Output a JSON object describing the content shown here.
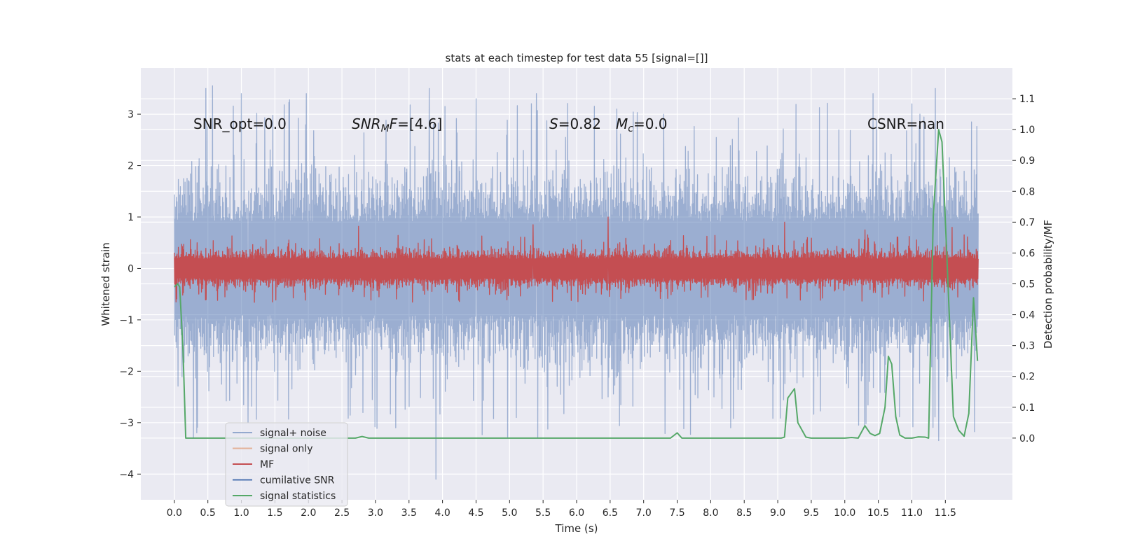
{
  "chart_data": {
    "type": "line",
    "title": "stats at each timestep for test data 55 [signal=[]]",
    "xlabel": "Time (s)",
    "ylabel_left": "Whitened strain",
    "ylabel_right": "Detection probability/MF",
    "xlim": [
      -0.5,
      12.5
    ],
    "ylim_left": [
      -4.5,
      3.9
    ],
    "ylim_right": [
      -0.2,
      1.2
    ],
    "x_ticks": [
      0.0,
      0.5,
      1.0,
      1.5,
      2.0,
      2.5,
      3.0,
      3.5,
      4.0,
      4.5,
      5.0,
      5.5,
      6.0,
      6.5,
      7.0,
      7.5,
      8.0,
      8.5,
      9.0,
      9.5,
      10.0,
      10.5,
      11.0,
      11.5
    ],
    "x_tick_labels": [
      "0.0",
      "0.5",
      "1.0",
      "1.5",
      "2.0",
      "2.5",
      "3.0",
      "3.5",
      "4.0",
      "4.5",
      "5.0",
      "5.5",
      "6.0",
      "6.5",
      "7.0",
      "7.5",
      "8.0",
      "8.5",
      "9.0",
      "9.5",
      "10.0",
      "10.5",
      "11.0",
      "11.5"
    ],
    "y_left_ticks": [
      3,
      2,
      1,
      0,
      -1,
      -2,
      -3,
      -4
    ],
    "y_left_tick_labels": [
      "3",
      "2",
      "1",
      "0",
      "−1",
      "−2",
      "−3",
      "−4"
    ],
    "y_right_ticks": [
      1.1,
      1.0,
      0.9,
      0.8,
      0.7,
      0.6,
      0.5,
      0.4,
      0.3,
      0.2,
      0.1,
      0.0
    ],
    "y_right_tick_labels": [
      "1.1",
      "1.0",
      "0.9",
      "0.8",
      "0.7",
      "0.6",
      "0.5",
      "0.4",
      "0.3",
      "0.2",
      "0.1",
      "0.0"
    ],
    "grid": true,
    "legend_position": "lower-left",
    "annotations": {
      "snr_opt": "SNR_opt=0.0",
      "snr_mf_italic": "SNR",
      "snr_mf_sub": "M",
      "snr_mf_italic2": "F",
      "snr_mf_value": "=[4.6]",
      "s_italic": "S",
      "s_value": "=0.82",
      "mc_italic": "M",
      "mc_sub": "c",
      "mc_value": "=0.0",
      "csnr": "CSNR=nan"
    },
    "series": [
      {
        "name": "signal+ noise",
        "color": "#4c72b0",
        "style": "noise",
        "description_axis": "left",
        "x_range": [
          0.0,
          11.99
        ],
        "band": [
          -1.5,
          1.5
        ],
        "peaks": [
          {
            "x": 0.47,
            "y": 3.5
          },
          {
            "x": 0.57,
            "y": 3.55
          },
          {
            "x": 1.0,
            "y": 3.4
          },
          {
            "x": 1.97,
            "y": 3.4
          },
          {
            "x": 3.8,
            "y": 3.5
          },
          {
            "x": 4.5,
            "y": 3.3
          },
          {
            "x": 5.4,
            "y": 3.4
          },
          {
            "x": 6.6,
            "y": 3.1
          },
          {
            "x": 7.3,
            "y": 3.0
          },
          {
            "x": 10.42,
            "y": 3.4
          },
          {
            "x": 11.0,
            "y": 3.2
          },
          {
            "x": 11.35,
            "y": 3.5
          },
          {
            "x": 3.9,
            "y": -4.1
          },
          {
            "x": 1.1,
            "y": -3.0
          },
          {
            "x": 8.3,
            "y": -3.1
          },
          {
            "x": 11.4,
            "y": -3.35
          },
          {
            "x": 3.3,
            "y": -3.1
          },
          {
            "x": 5.1,
            "y": -2.9
          }
        ]
      },
      {
        "name": "signal only",
        "color": "#dd8452",
        "style": "flat",
        "description_axis": "left",
        "x": [
          0.0,
          11.99
        ],
        "y": [
          0.0,
          0.0
        ]
      },
      {
        "name": "MF",
        "color": "#c44e52",
        "style": "noise",
        "description_axis": "left",
        "x_range": [
          0.0,
          11.99
        ],
        "band": [
          -0.3,
          0.3
        ],
        "peaks": [
          {
            "x": 6.47,
            "y": 1.0
          },
          {
            "x": 5.35,
            "y": 0.85
          },
          {
            "x": 9.1,
            "y": 0.9
          },
          {
            "x": 11.6,
            "y": 0.8
          },
          {
            "x": 2.75,
            "y": 0.82
          },
          {
            "x": 10.3,
            "y": 0.75
          }
        ]
      },
      {
        "name": "cumilative SNR",
        "color": "#4c72b0",
        "style": "hidden",
        "description_axis": "right",
        "x": [],
        "y": []
      },
      {
        "name": "signal statistics",
        "color": "#55a868",
        "style": "line",
        "description_axis": "right",
        "x": [
          0.0,
          0.05,
          0.08,
          0.13,
          0.17,
          0.3,
          2.7,
          2.8,
          2.9,
          6.2,
          7.4,
          7.5,
          7.57,
          7.65,
          9.05,
          9.1,
          9.15,
          9.25,
          9.3,
          9.42,
          9.5,
          10.0,
          10.1,
          10.2,
          10.3,
          10.38,
          10.45,
          10.52,
          10.6,
          10.65,
          10.7,
          10.76,
          10.82,
          10.9,
          11.0,
          11.1,
          11.2,
          11.25,
          11.32,
          11.4,
          11.45,
          11.53,
          11.62,
          11.7,
          11.78,
          11.85,
          11.92,
          11.98
        ],
        "y": [
          0.49,
          0.5,
          0.49,
          0.28,
          0.0,
          0.0,
          0.0,
          0.005,
          0.0,
          0.0,
          0.0,
          0.017,
          0.0,
          0.0,
          0.0,
          0.003,
          0.13,
          0.16,
          0.05,
          0.003,
          0.0,
          0.0,
          0.002,
          0.0,
          0.04,
          0.015,
          0.008,
          0.015,
          0.1,
          0.265,
          0.24,
          0.07,
          0.01,
          0.0,
          0.0,
          0.004,
          0.003,
          0.0,
          0.72,
          1.0,
          0.96,
          0.55,
          0.07,
          0.025,
          0.006,
          0.08,
          0.455,
          0.25
        ]
      }
    ]
  }
}
